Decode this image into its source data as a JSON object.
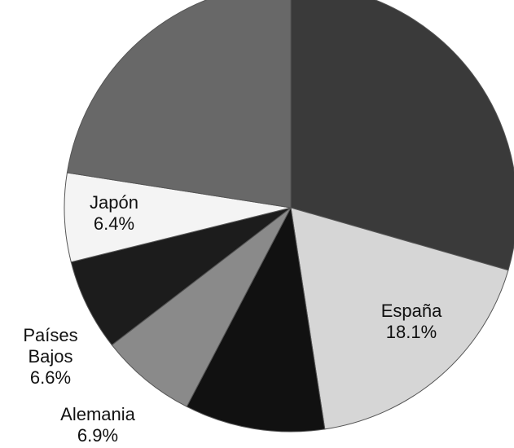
{
  "chart_data": {
    "type": "pie",
    "categories": [
      null,
      "España",
      null,
      "Alemania",
      "Países Bajos",
      "Japón",
      null
    ],
    "values": [
      29.5,
      18.1,
      10.0,
      6.9,
      6.6,
      6.4,
      22.5
    ],
    "value_labels": [
      null,
      "18.1%",
      null,
      "6.9%",
      "6.6%",
      "6.4%",
      null
    ],
    "colors": [
      "#3a3a3a",
      "#d6d6d6",
      "#111111",
      "#8a8a8a",
      "#1c1c1c",
      "#f4f4f4",
      "#686868"
    ]
  }
}
